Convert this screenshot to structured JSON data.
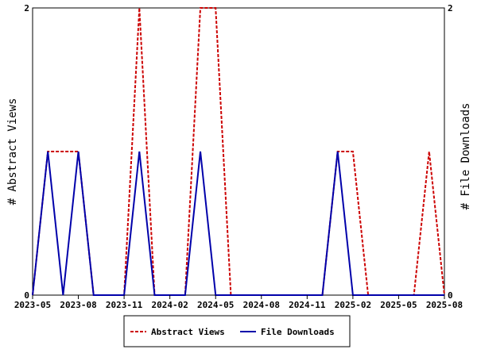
{
  "chart_data": {
    "type": "line",
    "x": [
      "2023-05",
      "2023-06",
      "2023-07",
      "2023-08",
      "2023-09",
      "2023-10",
      "2023-11",
      "2023-12",
      "2024-01",
      "2024-02",
      "2024-03",
      "2024-04",
      "2024-05",
      "2024-06",
      "2024-07",
      "2024-08",
      "2024-09",
      "2024-10",
      "2024-11",
      "2024-12",
      "2025-01",
      "2025-02",
      "2025-03",
      "2025-04",
      "2025-05",
      "2025-06",
      "2025-07",
      "2025-08"
    ],
    "series": [
      {
        "name": "Abstract Views",
        "axis": "left",
        "color": "#cc0000",
        "dash": "dashed",
        "values": [
          0,
          1,
          1,
          1,
          0,
          0,
          0,
          2,
          0,
          0,
          0,
          2,
          2,
          0,
          0,
          0,
          0,
          0,
          0,
          0,
          1,
          1,
          0,
          0,
          0,
          0,
          1,
          0
        ]
      },
      {
        "name": "File Downloads",
        "axis": "right",
        "color": "#0000aa",
        "dash": "solid",
        "values": [
          0,
          1,
          0,
          1,
          0,
          0,
          0,
          1,
          0,
          0,
          0,
          1,
          0,
          0,
          0,
          0,
          0,
          0,
          0,
          0,
          1,
          0,
          0,
          0,
          0,
          0,
          0,
          0
        ]
      }
    ],
    "xticks": [
      "2023-05",
      "2023-08",
      "2023-11",
      "2024-02",
      "2024-05",
      "2024-08",
      "2024-11",
      "2025-02",
      "2025-05",
      "2025-08"
    ],
    "ylabel": "# Abstract Views",
    "y2label": "# File Downloads",
    "ylim": [
      0,
      2
    ],
    "y2lim": [
      0,
      2
    ],
    "yticks": [
      "0",
      "2"
    ],
    "y2ticks": [
      "0",
      "2"
    ],
    "grid": false,
    "legend_position": "bottom-center"
  }
}
